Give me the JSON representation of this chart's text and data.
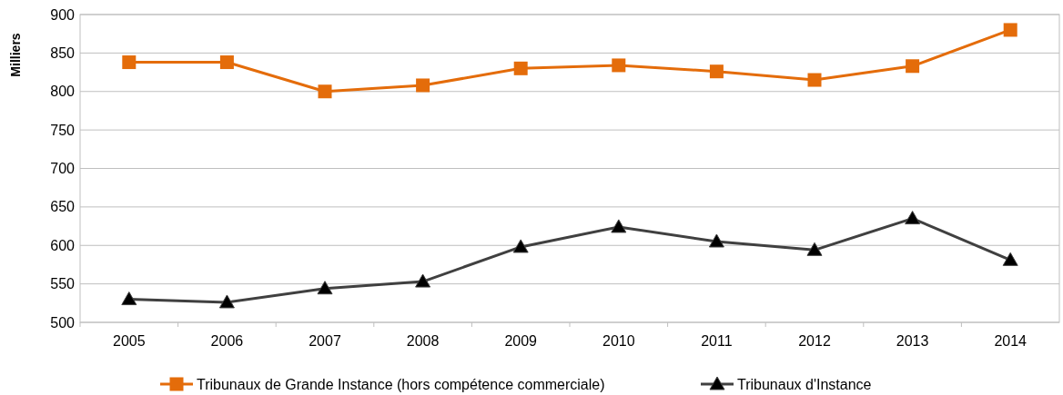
{
  "chart_data": {
    "type": "line",
    "ylabel": "Milliers",
    "categories": [
      "2005",
      "2006",
      "2007",
      "2008",
      "2009",
      "2010",
      "2011",
      "2012",
      "2013",
      "2014"
    ],
    "series": [
      {
        "name": "Tribunaux de Grande Instance (hors compétence commerciale)",
        "color": "#e46c0a",
        "marker": "square",
        "values": [
          838,
          838,
          800,
          808,
          830,
          834,
          826,
          815,
          833,
          880
        ]
      },
      {
        "name": "Tribunaux d'Instance",
        "color": "#404040",
        "marker": "triangle",
        "values": [
          530,
          526,
          544,
          553,
          598,
          624,
          605,
          594,
          635,
          581
        ]
      }
    ],
    "ylim": [
      500,
      900
    ],
    "yticks": [
      500,
      550,
      600,
      650,
      700,
      750,
      800,
      850,
      900
    ],
    "grid": "y",
    "legend": "bottom"
  }
}
